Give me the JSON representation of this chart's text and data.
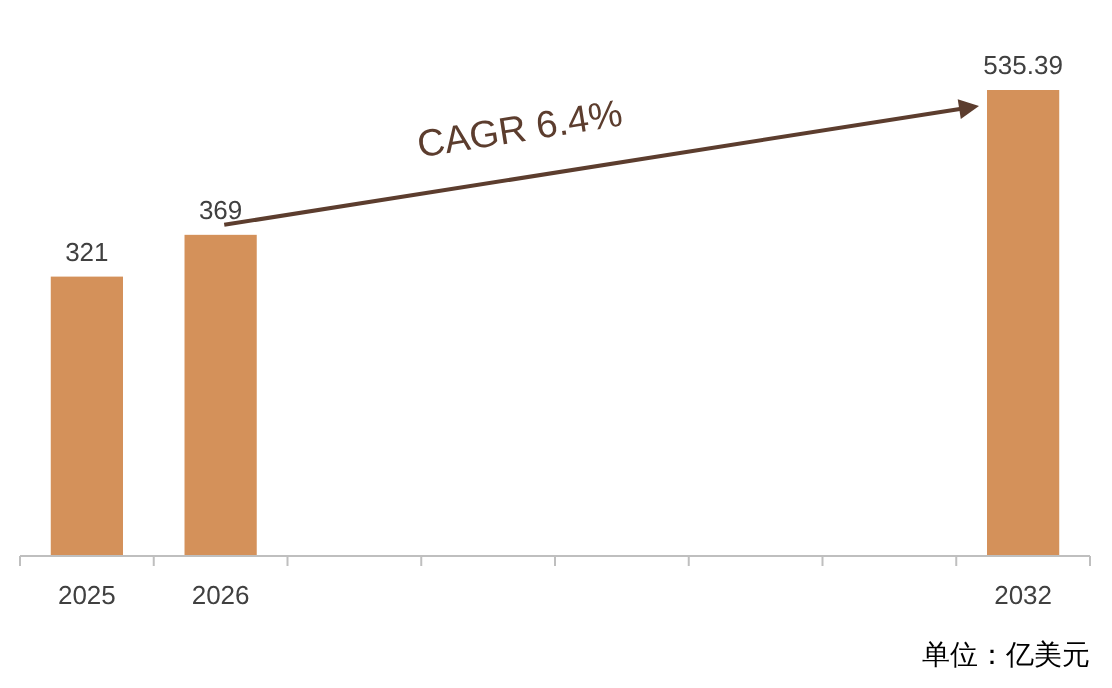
{
  "chart_data": {
    "type": "bar",
    "categories": [
      "2025",
      "2026",
      null,
      null,
      null,
      null,
      null,
      "2032"
    ],
    "values": [
      321,
      369,
      null,
      null,
      null,
      null,
      null,
      535.39
    ],
    "color": "#d4915a",
    "data_labels": true,
    "annotations": [
      "CAGR 6.4%",
      "单位：亿美元"
    ]
  }
}
